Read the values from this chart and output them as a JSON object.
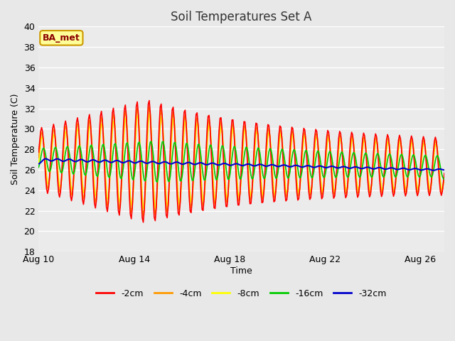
{
  "title": "Soil Temperatures Set A",
  "xlabel": "Time",
  "ylabel": "Soil Temperature (C)",
  "ylim": [
    18,
    40
  ],
  "yticks": [
    18,
    20,
    22,
    24,
    26,
    28,
    30,
    32,
    34,
    36,
    38,
    40
  ],
  "xtick_labels": [
    "Aug 10",
    "Aug 14",
    "Aug 18",
    "Aug 22",
    "Aug 26"
  ],
  "xtick_positions": [
    0,
    4,
    8,
    12,
    16
  ],
  "legend_labels": [
    "-2cm",
    "-4cm",
    "-8cm",
    "-16cm",
    "-32cm"
  ],
  "legend_colors": [
    "#ff0000",
    "#ff9900",
    "#ffff00",
    "#00cc00",
    "#0000cc"
  ],
  "annotation_text": "BA_met",
  "annotation_color": "#8b0000",
  "annotation_bg": "#ffff99",
  "annotation_border": "#cc9900",
  "fig_bg": "#e8e8e8",
  "plot_bg": "#ebebeb",
  "grid_color": "#ffffff",
  "line_width": 1.2,
  "figsize": [
    6.4,
    4.8
  ],
  "dpi": 100
}
